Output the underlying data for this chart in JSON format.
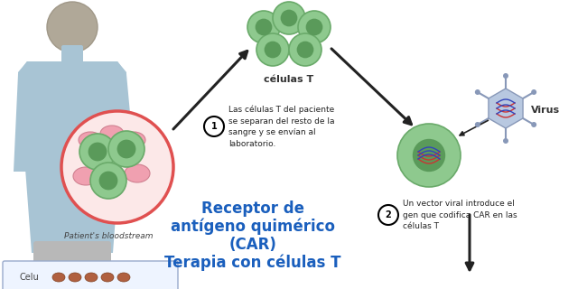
{
  "background_color": "#ffffff",
  "figure_width": 6.5,
  "figure_height": 3.2,
  "dpi": 100,
  "person_body_color": "#a8c4d4",
  "person_skin_color": "#b8a898",
  "bloodstream_circle_color": "#fce8e8",
  "bloodstream_border_color": "#e05050",
  "t_cell_fill": "#8ec98e",
  "t_cell_inner": "#5a9a5a",
  "t_cell_border": "#6aaa6a",
  "red_cell_fill": "#f0a0b0",
  "red_cell_border": "#d08090",
  "virus_body_color": "#b8c8e0",
  "virus_border_color": "#8898b8",
  "label_celulas_t": "células T",
  "label_bloodstream": "Patient's bloodstream",
  "step1_number": "1",
  "step1_text": "Las células T del paciente\nse separan del resto de la\nsangre y se envían al\nlaboratorio.",
  "step2_number": "2",
  "step2_text": "Un vector viral introduce el\ngen que codifica CAR en las\ncélulas T",
  "label_virus": "Virus",
  "center_title_line1": "Receptor de",
  "center_title_line2": "antígeno quimérico",
  "center_title_line3": "(CAR)",
  "center_title_line4": "Terapia con células T",
  "center_title_color": "#1a5fbd",
  "bottom_label": "Celu"
}
